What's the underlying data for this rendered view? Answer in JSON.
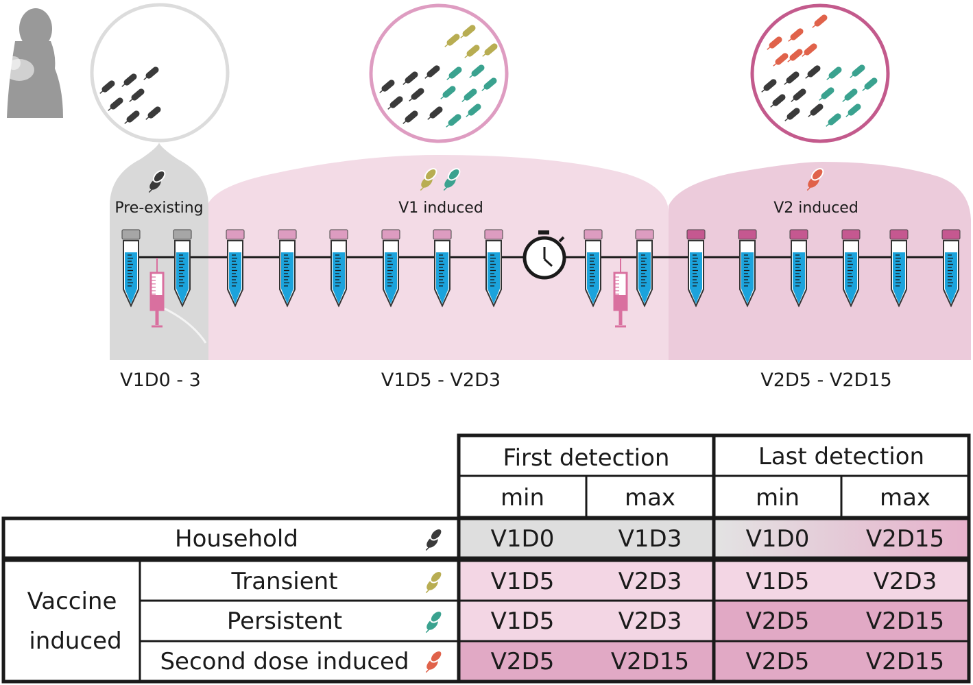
{
  "timeline": {
    "phases": [
      {
        "label": "Pre-existing",
        "color": "#d9d9d9",
        "bacterium": "black"
      },
      {
        "label": "V1 induced",
        "color": "#f3dbe6",
        "bacterium": "olive-teal"
      },
      {
        "label": "V2 induced",
        "color": "#eccbdb",
        "bacterium": "red"
      }
    ],
    "ranges": [
      "V1D0 - 3",
      "V1D5 - V2D3",
      "V2D5 - V2D15"
    ],
    "icons": [
      "mother-with-baby-icon",
      "stopwatch-icon",
      "syringe-icon",
      "sample-tube-icon",
      "bacterium-icon"
    ]
  },
  "colors": {
    "black": "#3a3a3a",
    "olive": "#b8ad52",
    "teal": "#3aa28f",
    "red": "#e0624a",
    "tube_liquid": "#1ba3dc",
    "cap_gray": "#a6a6a6",
    "cap_pink": "#dd9cc0",
    "cap_magenta": "#c55890",
    "syringe": "#d9709f",
    "ring_gray": "#dcdcdc",
    "ring_pink": "#de9cc1",
    "ring_magenta": "#c35a8c"
  },
  "table": {
    "header_first": "First detection",
    "header_last": "Last detection",
    "min": "min",
    "max": "max",
    "household": {
      "label": "Household",
      "values": [
        "V1D0",
        "V1D3",
        "V1D0",
        "V2D15"
      ]
    },
    "vaccine_group": [
      "Vaccine",
      "induced"
    ],
    "transient": {
      "label": "Transient",
      "values": [
        "V1D5",
        "V2D3",
        "V1D5",
        "V2D3"
      ]
    },
    "persistent": {
      "label": "Persistent",
      "values": [
        "V1D5",
        "V2D3",
        "V2D5",
        "V2D15"
      ]
    },
    "second_dose": {
      "label": "Second dose induced",
      "values": [
        "V2D5",
        "V2D15",
        "V2D5",
        "V2D15"
      ]
    }
  }
}
